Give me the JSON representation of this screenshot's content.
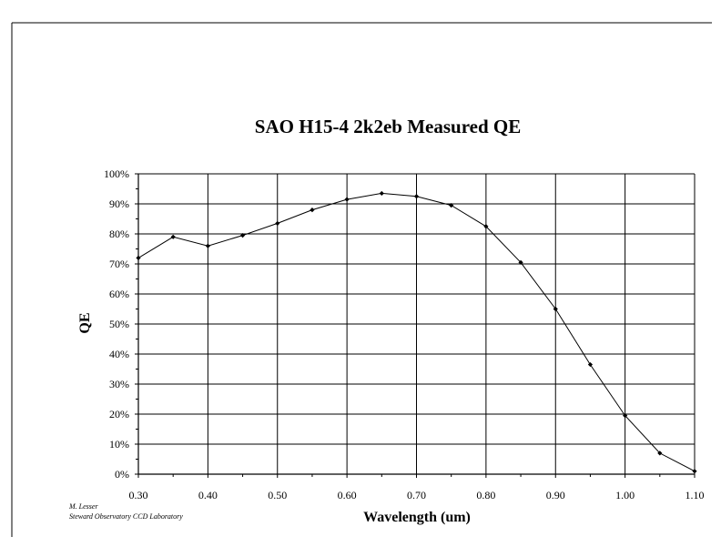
{
  "chart_data": {
    "type": "line",
    "title": "SAO H15-4 2k2eb Measured QE",
    "xlabel": "Wavelength (um)",
    "ylabel": "QE",
    "xlim": [
      0.3,
      1.1
    ],
    "ylim": [
      0,
      100
    ],
    "x_ticks": [
      "0.30",
      "0.40",
      "0.50",
      "0.60",
      "0.70",
      "0.80",
      "0.90",
      "1.00",
      "1.10"
    ],
    "y_ticks": [
      "0%",
      "10%",
      "20%",
      "30%",
      "40%",
      "50%",
      "60%",
      "70%",
      "80%",
      "90%",
      "100%"
    ],
    "grid": true,
    "legend": "none",
    "series": [
      {
        "x": [
          0.3,
          0.35,
          0.4,
          0.45,
          0.5,
          0.55,
          0.6,
          0.65,
          0.7,
          0.75,
          0.8,
          0.85,
          0.9,
          0.95,
          1.0,
          1.05,
          1.1
        ],
        "y": [
          72,
          79,
          76,
          79.5,
          83.5,
          88,
          91.5,
          93.5,
          92.5,
          89.5,
          82.5,
          70.5,
          55,
          36.5,
          19.5,
          7,
          1
        ]
      }
    ],
    "color": "#000000"
  },
  "credit": {
    "line1": "M. Lesser",
    "line2": "Steward Observatory CCD Laboratory"
  }
}
